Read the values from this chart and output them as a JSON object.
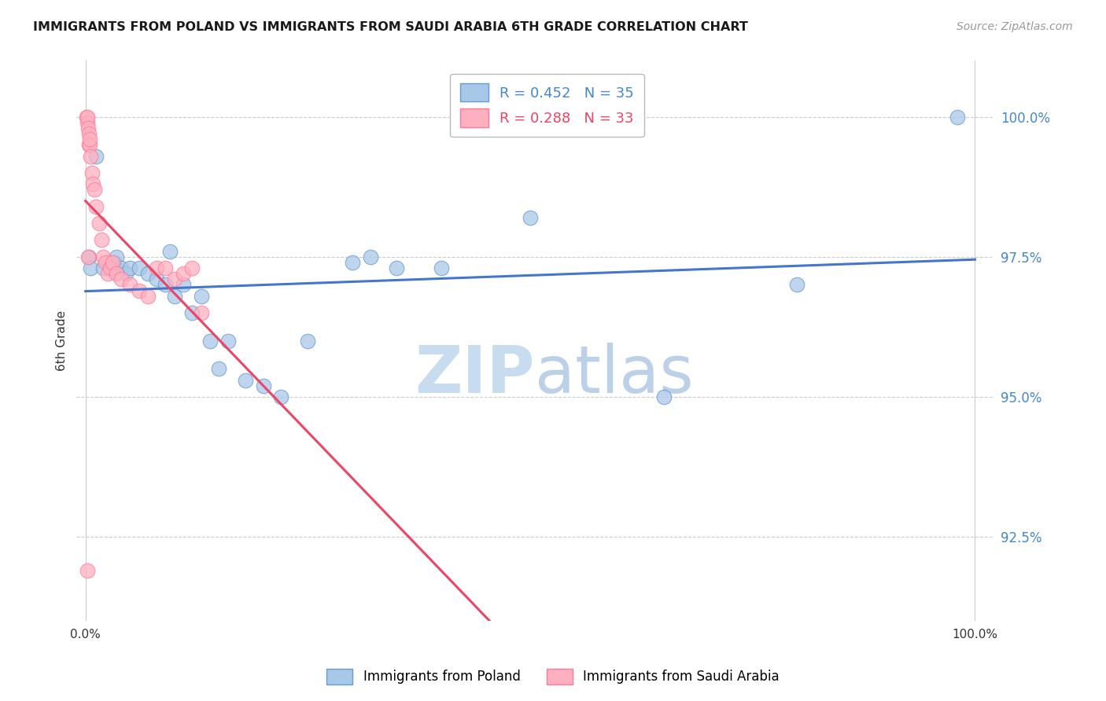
{
  "title": "IMMIGRANTS FROM POLAND VS IMMIGRANTS FROM SAUDI ARABIA 6TH GRADE CORRELATION CHART",
  "source": "Source: ZipAtlas.com",
  "ylabel": "6th Grade",
  "y_ticks": [
    92.5,
    95.0,
    97.5,
    100.0
  ],
  "x_ticks": [
    0.0,
    100.0
  ],
  "y_min": 91.0,
  "y_max": 101.0,
  "x_min": -1.0,
  "x_max": 102.0,
  "legend1_label": "R = 0.452   N = 35",
  "legend2_label": "R = 0.288   N = 33",
  "blue_color": "#A8C8E8",
  "blue_edge": "#6699CC",
  "pink_color": "#FFB0C0",
  "pink_edge": "#FF7799",
  "line_blue": "#4477CC",
  "line_pink": "#EE4466",
  "legend_text_blue": "#4488CC",
  "legend_text_pink": "#EE4466",
  "ytick_color": "#4488CC",
  "watermark_zip_color": "#C8DCF0",
  "watermark_atlas_color": "#A0BEDD",
  "blue_x": [
    0.4,
    0.6,
    1.2,
    2.0,
    2.5,
    3.0,
    3.2,
    3.5,
    4.0,
    4.5,
    5.0,
    6.0,
    7.0,
    8.0,
    9.0,
    10.0,
    11.0,
    12.0,
    13.0,
    14.0,
    15.0,
    16.0,
    18.0,
    20.0,
    22.0,
    25.0,
    30.0,
    35.0,
    40.0,
    50.0,
    65.0,
    80.0,
    98.0,
    32.0,
    9.5
  ],
  "blue_y": [
    97.5,
    97.3,
    99.3,
    97.3,
    97.4,
    97.3,
    97.4,
    97.5,
    97.3,
    97.2,
    97.3,
    97.3,
    97.2,
    97.1,
    97.0,
    96.8,
    97.0,
    96.5,
    96.8,
    96.0,
    95.5,
    96.0,
    95.3,
    95.2,
    95.0,
    96.0,
    97.4,
    97.3,
    97.3,
    98.2,
    95.0,
    97.0,
    100.0,
    97.5,
    97.6
  ],
  "pink_x": [
    0.15,
    0.2,
    0.25,
    0.3,
    0.35,
    0.4,
    0.5,
    0.5,
    0.6,
    0.7,
    0.8,
    1.0,
    1.2,
    1.5,
    1.8,
    2.0,
    2.2,
    2.5,
    2.8,
    3.0,
    3.5,
    4.0,
    5.0,
    6.0,
    7.0,
    8.0,
    9.0,
    10.0,
    11.0,
    12.0,
    13.0,
    0.3,
    0.25
  ],
  "pink_y": [
    100.0,
    99.9,
    100.0,
    99.8,
    99.7,
    99.5,
    99.5,
    99.6,
    99.3,
    99.0,
    98.8,
    98.7,
    98.4,
    98.1,
    97.8,
    97.5,
    97.4,
    97.2,
    97.3,
    97.4,
    97.2,
    97.1,
    97.0,
    96.9,
    96.8,
    97.3,
    97.3,
    97.1,
    97.2,
    97.3,
    96.5,
    97.5,
    91.9
  ]
}
